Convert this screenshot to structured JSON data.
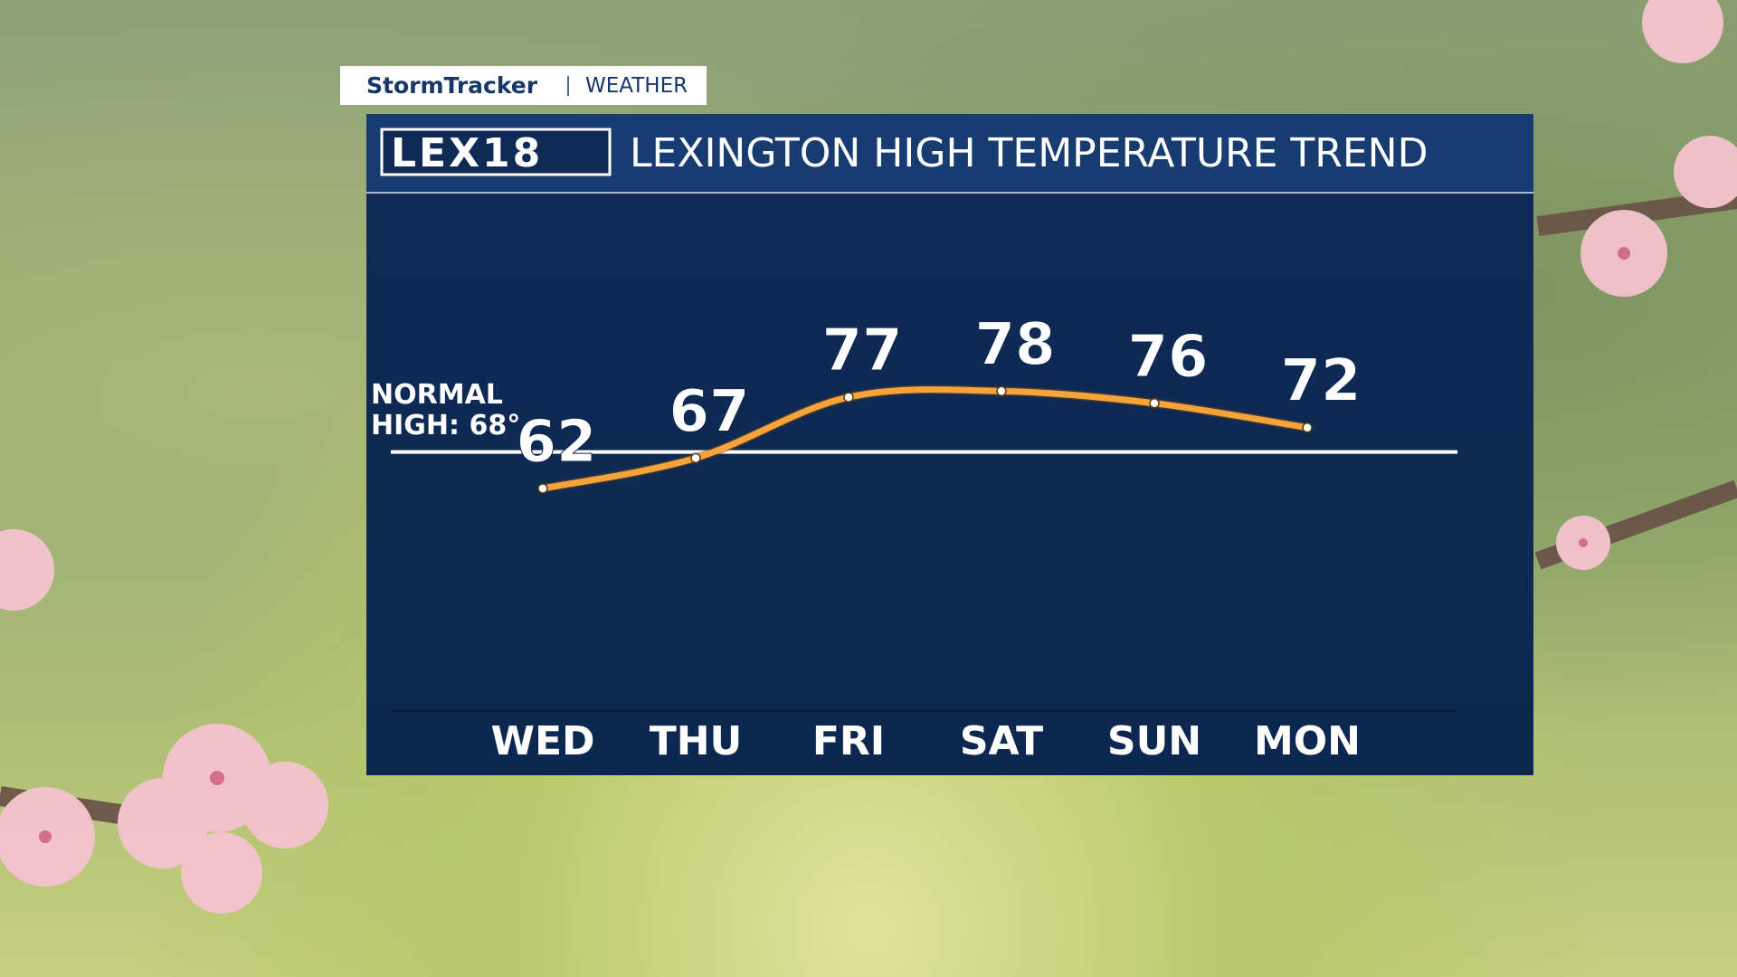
{
  "header": {
    "brand": "StormTracker",
    "section": "WEATHER",
    "logo": "LEX18"
  },
  "chart_data": {
    "type": "line",
    "title": "LEXINGTON HIGH TEMPERATURE TREND",
    "categories": [
      "WED",
      "THU",
      "FRI",
      "SAT",
      "SUN",
      "MON"
    ],
    "values": [
      62,
      67,
      77,
      78,
      76,
      72
    ],
    "color": "#f5a33a",
    "ylim": [
      40,
      90
    ],
    "reference_line": {
      "label": "NORMAL HIGH: 68°",
      "value": 68
    }
  }
}
